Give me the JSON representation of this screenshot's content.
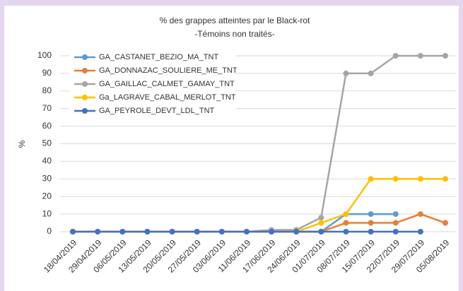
{
  "chart_data": {
    "type": "line",
    "title": "% des grappes atteintes par le Black-rot",
    "subtitle": "-Témoins non traités-",
    "y_label": "%",
    "categories": [
      "18/04/2019",
      "29/04/2019",
      "06/05/2019",
      "13/05/2019",
      "20/05/2019",
      "27/05/2019",
      "03/06/2019",
      "11/06/2019",
      "17/06/2019",
      "24/06/2019",
      "01/07/2019",
      "08/07/2019",
      "15/07/2019",
      "22/07/2019",
      "29/07/2019",
      "05/08/2019"
    ],
    "series": [
      {
        "name": "GA_CASTANET_BEZIO_MA_TNT",
        "color": "#5b9bd5",
        "values": [
          0,
          0,
          0,
          0,
          0,
          0,
          0,
          0,
          0,
          0,
          0,
          10,
          10,
          10,
          null,
          null
        ]
      },
      {
        "name": "GA_DONNAZAC_SOULIERE_ME_TNT",
        "color": "#ed7d31",
        "values": [
          0,
          0,
          0,
          0,
          0,
          0,
          0,
          0,
          0,
          0,
          0,
          5,
          5,
          5,
          10,
          5
        ]
      },
      {
        "name": "GA_GAILLAC_CALMET_GAMAY_TNT",
        "color": "#a5a5a5",
        "values": [
          0,
          0,
          0,
          0,
          0,
          0,
          0,
          0,
          1,
          1,
          8,
          90,
          90,
          100,
          100,
          100
        ]
      },
      {
        "name": "Ga_LAGRAVE_CABAL_MERLOT_TNT",
        "color": "#ffc000",
        "values": [
          0,
          0,
          0,
          0,
          0,
          0,
          0,
          0,
          0,
          0,
          5,
          10,
          30,
          30,
          30,
          30
        ]
      },
      {
        "name": "GA_PEYROLE_DEVT_LDL_TNT",
        "color": "#4472c4",
        "values": [
          0,
          0,
          0,
          0,
          0,
          0,
          0,
          0,
          0,
          0,
          0,
          0,
          0,
          0,
          0,
          null
        ]
      }
    ],
    "ylim": [
      0,
      100
    ],
    "yticks": [
      0,
      10,
      20,
      30,
      40,
      50,
      60,
      70,
      80,
      90,
      100
    ],
    "grid": true,
    "legend": "top-left"
  }
}
